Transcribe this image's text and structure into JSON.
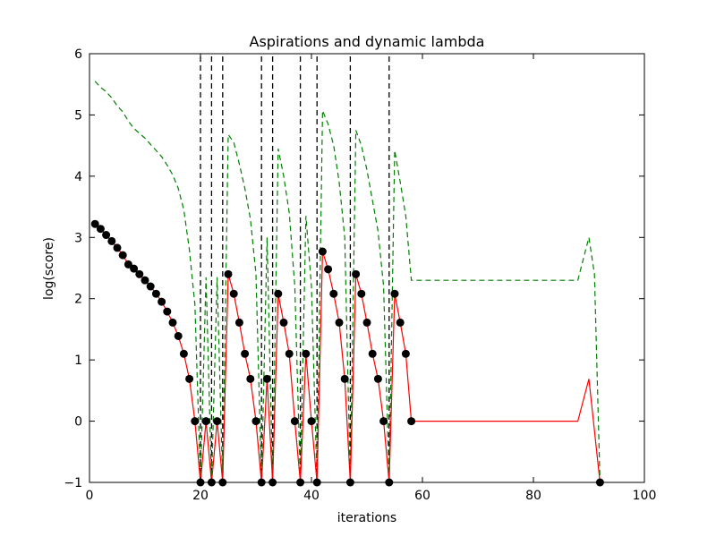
{
  "chart_data": {
    "type": "line",
    "title": "Aspirations and dynamic lambda",
    "xlabel": "iterations",
    "ylabel": "log(score)",
    "xlim": [
      0,
      100
    ],
    "ylim": [
      -1,
      6
    ],
    "x_ticks": [
      0,
      20,
      40,
      60,
      80,
      100
    ],
    "y_ticks": [
      -1,
      0,
      1,
      2,
      3,
      4,
      5,
      6
    ],
    "grid": false,
    "legend": "none",
    "colors": {
      "score_line": "#ff0000",
      "score_markers": "#000000",
      "aspiration_line": "#008000",
      "lambda_lines": "#000000"
    },
    "series": [
      {
        "style": "solid",
        "markers": "circle",
        "x": [
          1,
          2,
          3,
          4,
          5,
          6,
          7,
          8,
          9,
          10,
          11,
          12,
          13,
          14,
          15,
          16,
          17,
          18,
          19,
          20,
          21,
          22,
          23,
          24,
          25,
          26,
          27,
          28,
          29,
          30,
          31,
          32,
          33,
          34,
          35,
          36,
          37,
          38,
          39,
          40,
          41,
          42,
          43,
          44,
          45,
          46,
          47,
          48,
          49,
          50,
          51,
          52,
          53,
          54,
          55,
          56,
          57,
          58,
          88,
          90,
          92
        ],
        "values": [
          3.22,
          3.14,
          3.04,
          2.94,
          2.83,
          2.71,
          2.56,
          2.49,
          2.4,
          2.3,
          2.2,
          2.08,
          1.95,
          1.79,
          1.61,
          1.39,
          1.1,
          0.69,
          0.0,
          -1.0,
          0.0,
          -1.0,
          0.0,
          -1.0,
          2.4,
          2.08,
          1.61,
          1.1,
          0.69,
          0.0,
          -1.0,
          0.69,
          -1.0,
          2.08,
          1.61,
          1.1,
          0.0,
          -1.0,
          1.1,
          0.0,
          -1.0,
          2.77,
          2.48,
          2.08,
          1.61,
          0.69,
          -1.0,
          2.4,
          2.08,
          1.61,
          1.1,
          0.69,
          0.0,
          -1.0,
          2.08,
          1.61,
          1.1,
          0.0,
          0.0,
          0.69,
          -1.0
        ],
        "marker_x": [
          1,
          2,
          3,
          4,
          5,
          6,
          7,
          8,
          9,
          10,
          11,
          12,
          13,
          14,
          15,
          16,
          17,
          18,
          19,
          20,
          21,
          22,
          23,
          24,
          25,
          26,
          27,
          28,
          29,
          30,
          31,
          32,
          33,
          34,
          35,
          36,
          37,
          38,
          39,
          40,
          41,
          42,
          43,
          44,
          45,
          46,
          47,
          48,
          49,
          50,
          51,
          52,
          53,
          54,
          55,
          56,
          57,
          58,
          92
        ],
        "marker_values": [
          3.22,
          3.14,
          3.04,
          2.94,
          2.83,
          2.71,
          2.56,
          2.49,
          2.4,
          2.3,
          2.2,
          2.08,
          1.95,
          1.79,
          1.61,
          1.39,
          1.1,
          0.69,
          0.0,
          -1.0,
          0.0,
          -1.0,
          0.0,
          -1.0,
          2.4,
          2.08,
          1.61,
          1.1,
          0.69,
          0.0,
          -1.0,
          0.69,
          -1.0,
          2.08,
          1.61,
          1.1,
          0.0,
          -1.0,
          1.1,
          0.0,
          -1.0,
          2.77,
          2.48,
          2.08,
          1.61,
          0.69,
          -1.0,
          2.4,
          2.08,
          1.61,
          1.1,
          0.69,
          0.0,
          -1.0,
          2.08,
          1.61,
          1.1,
          0.0,
          -1.0
        ]
      },
      {
        "style": "dashed",
        "x": [
          1,
          2,
          3,
          4,
          5,
          6,
          7,
          8,
          9,
          10,
          11,
          12,
          13,
          14,
          15,
          16,
          17,
          18,
          19,
          20,
          21,
          22,
          23,
          24,
          25,
          26,
          27,
          28,
          29,
          30,
          31,
          32,
          33,
          34,
          35,
          36,
          37,
          38,
          39,
          40,
          41,
          42,
          43,
          44,
          45,
          46,
          47,
          48,
          49,
          50,
          51,
          52,
          53,
          54,
          55,
          56,
          57,
          58,
          88,
          90,
          91,
          92
        ],
        "values": [
          5.55,
          5.45,
          5.38,
          5.28,
          5.15,
          5.05,
          4.9,
          4.78,
          4.7,
          4.62,
          4.52,
          4.42,
          4.32,
          4.18,
          4.02,
          3.8,
          3.45,
          2.8,
          1.9,
          -1.0,
          2.35,
          -1.0,
          2.35,
          -1.0,
          4.68,
          4.55,
          4.2,
          3.8,
          3.3,
          2.4,
          -1.0,
          3.0,
          -1.0,
          4.45,
          4.0,
          3.4,
          2.2,
          -1.0,
          3.35,
          2.2,
          -1.0,
          5.07,
          4.85,
          4.5,
          3.9,
          3.0,
          -1.0,
          4.75,
          4.5,
          4.1,
          3.6,
          3.1,
          2.2,
          -1.0,
          4.42,
          3.9,
          3.35,
          2.3,
          2.3,
          3.0,
          2.4,
          -1.0
        ]
      },
      {
        "style": "dashed",
        "type": "vertical_lines",
        "x": [
          20,
          22,
          24,
          31,
          33,
          38,
          41,
          47,
          54
        ],
        "y_range": [
          -1,
          6
        ]
      }
    ]
  }
}
